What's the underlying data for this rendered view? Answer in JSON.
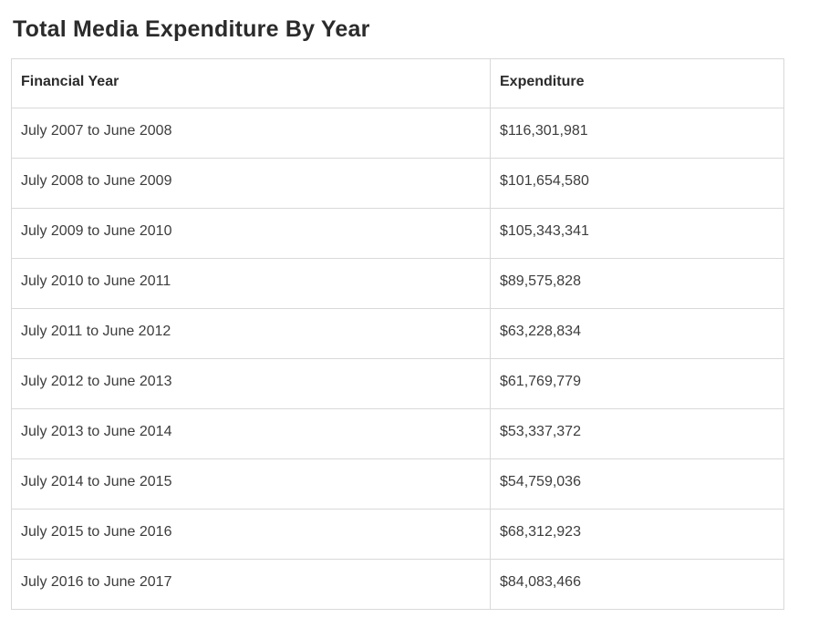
{
  "page": {
    "title": "Total Media Expenditure By Year"
  },
  "table": {
    "columns": [
      "Financial Year",
      "Expenditure"
    ],
    "rows": [
      [
        "July 2007 to June 2008",
        "$116,301,981"
      ],
      [
        "July 2008 to June 2009",
        "$101,654,580"
      ],
      [
        "July 2009 to June 2010",
        "$105,343,341"
      ],
      [
        "July 2010 to June 2011",
        "$89,575,828"
      ],
      [
        "July 2011 to June 2012",
        "$63,228,834"
      ],
      [
        "July 2012 to June 2013",
        "$61,769,779"
      ],
      [
        "July 2013 to June 2014",
        "$53,337,372"
      ],
      [
        "July 2014 to June 2015",
        "$54,759,036"
      ],
      [
        "July 2015 to June 2016",
        "$68,312,923"
      ],
      [
        "July 2016 to June 2017",
        "$84,083,466"
      ]
    ]
  },
  "chart_data": {
    "type": "table",
    "title": "Total Media Expenditure By Year",
    "columns": [
      "Financial Year",
      "Expenditure"
    ],
    "categories": [
      "July 2007 to June 2008",
      "July 2008 to June 2009",
      "July 2009 to June 2010",
      "July 2010 to June 2011",
      "July 2011 to June 2012",
      "July 2012 to June 2013",
      "July 2013 to June 2014",
      "July 2014 to June 2015",
      "July 2015 to June 2016",
      "July 2016 to June 2017"
    ],
    "values": [
      116301981,
      101654580,
      105343341,
      89575828,
      63228834,
      61769779,
      53337372,
      54759036,
      68312923,
      84083466
    ],
    "value_labels": [
      "$116,301,981",
      "$101,654,580",
      "$105,343,341",
      "$89,575,828",
      "$63,228,834",
      "$61,769,779",
      "$53,337,372",
      "$54,759,036",
      "$68,312,923",
      "$84,083,466"
    ],
    "currency": "$"
  },
  "colors": {
    "background": "#ffffff",
    "border": "#d9d9d9",
    "title_text": "#2b2b2b",
    "header_text": "#2b2b2b",
    "cell_text": "#3d3d3d"
  }
}
